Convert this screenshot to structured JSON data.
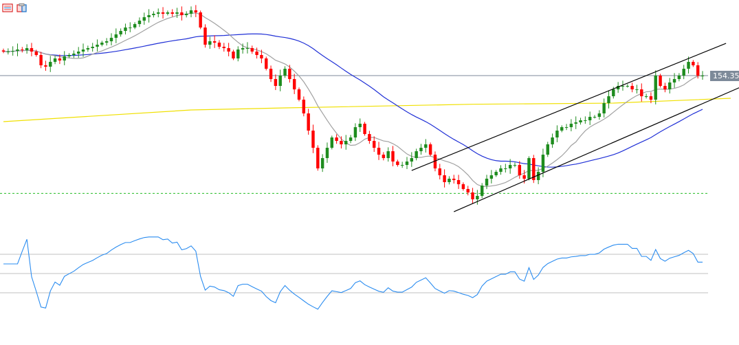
{
  "toolbar": {
    "icons": [
      "list-icon",
      "template-save-icon"
    ]
  },
  "colors": {
    "bull": "#1e8c1e",
    "bear": "#ff0000",
    "ma_fast": "#a0a0a0",
    "ma_mid": "#1f2fd6",
    "ma_slow": "#f0e000",
    "channel": "#000000",
    "support": "#22bb22",
    "price_line": "#7d8a99",
    "rsi": "#2a8cf0",
    "rsi_levels": "#c0c0c0"
  },
  "chart_data": {
    "type": "candlestick",
    "current_price_label": "154.351",
    "current_price": 154.351,
    "support_level": 149.21,
    "closes": [
      155.4,
      155.4,
      155.43,
      155.49,
      155.46,
      155.55,
      155.4,
      155.25,
      154.8,
      154.74,
      154.95,
      155.1,
      155.01,
      155.19,
      155.25,
      155.31,
      155.4,
      155.49,
      155.55,
      155.61,
      155.7,
      155.79,
      155.85,
      156.0,
      156.15,
      156.3,
      156.45,
      156.45,
      156.6,
      156.75,
      156.9,
      156.99,
      157.05,
      157.11,
      157.05,
      157.11,
      157.05,
      157.11,
      156.99,
      157.05,
      157.2,
      157.11,
      156.45,
      155.7,
      155.85,
      155.79,
      155.61,
      155.55,
      155.4,
      155.1,
      155.49,
      155.55,
      155.55,
      155.4,
      155.25,
      155.1,
      154.65,
      154.2,
      153.9,
      154.35,
      154.65,
      154.2,
      153.75,
      153.3,
      152.7,
      151.95,
      151.2,
      150.3,
      150.75,
      151.2,
      151.65,
      151.5,
      151.35,
      151.5,
      151.65,
      152.1,
      152.25,
      151.8,
      151.5,
      151.2,
      150.9,
      150.75,
      151.05,
      150.6,
      150.45,
      150.45,
      150.6,
      150.75,
      151.05,
      151.2,
      151.35,
      150.9,
      150.3,
      150.0,
      149.7,
      149.85,
      149.79,
      149.61,
      149.4,
      149.25,
      148.95,
      149.1,
      149.55,
      149.85,
      150.0,
      150.15,
      150.3,
      150.3,
      150.45,
      150.45,
      150.0,
      149.85,
      150.75,
      149.79,
      150.15,
      150.9,
      151.35,
      151.65,
      151.95,
      152.1,
      152.1,
      152.25,
      152.31,
      152.4,
      152.4,
      152.55,
      152.55,
      152.7,
      153.15,
      153.45,
      153.75,
      153.9,
      153.9,
      153.9,
      153.75,
      153.75,
      153.45,
      153.45,
      153.3,
      154.35,
      153.9,
      153.75,
      154.05,
      154.2,
      154.35,
      154.65,
      154.95,
      154.8,
      154.35,
      154.35
    ],
    "ma_fast_period": 10,
    "ma_mid_period": 40,
    "ma_slow_points": [
      [
        0,
        152.34
      ],
      [
        40,
        152.85
      ],
      [
        60,
        152.94
      ],
      [
        100,
        153.1
      ],
      [
        130,
        153.15
      ],
      [
        155,
        153.36
      ]
    ],
    "channel_upper": [
      [
        87,
        150.21
      ],
      [
        154,
        155.76
      ]
    ],
    "channel_lower": [
      [
        96,
        148.41
      ],
      [
        157,
        153.84
      ]
    ],
    "rsi_period": 14,
    "rsi_levels": [
      70,
      50,
      30
    ]
  }
}
